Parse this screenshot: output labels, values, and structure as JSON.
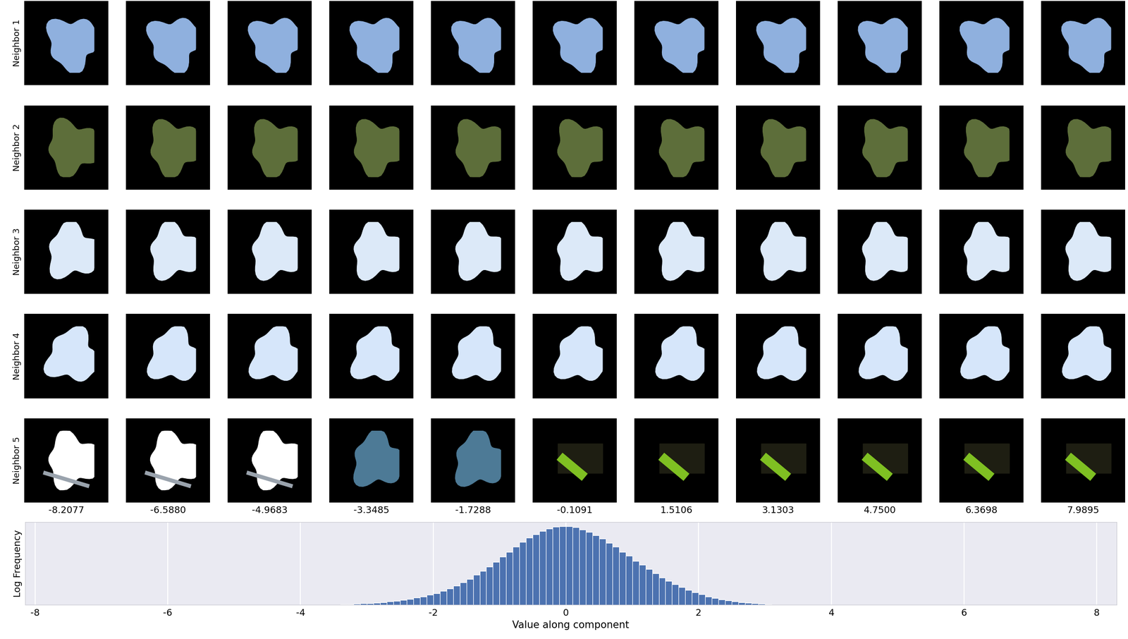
{
  "image_grid": {
    "row_labels": [
      "Neighbor 1",
      "Neighbor 2",
      "Neighbor 3",
      "Neighbor 4",
      "Neighbor 5"
    ],
    "column_labels": [
      "-8.2077",
      "-6.5880",
      "-4.9683",
      "-3.3485",
      "-1.7288",
      "-0.1091",
      "1.5106",
      "3.1303",
      "4.7500",
      "6.3698",
      "7.9895"
    ]
  },
  "chart_data": {
    "type": "histogram",
    "xlabel": "Value along component",
    "ylabel": "Log Frequency",
    "bins": [
      -3.4,
      -3.3,
      -3.2,
      -3.1,
      -3.0,
      -2.9,
      -2.8,
      -2.7,
      -2.6,
      -2.5,
      -2.4,
      -2.3,
      -2.2,
      -2.1,
      -2.0,
      -1.9,
      -1.8,
      -1.7,
      -1.6,
      -1.5,
      -1.4,
      -1.3,
      -1.2,
      -1.1,
      -1.0,
      -0.9,
      -0.8,
      -0.7,
      -0.6,
      -0.5,
      -0.4,
      -0.3,
      -0.2,
      -0.1,
      0.0,
      0.1,
      0.2,
      0.3,
      0.4,
      0.5,
      0.6,
      0.7,
      0.8,
      0.9,
      1.0,
      1.1,
      1.2,
      1.3,
      1.4,
      1.5,
      1.6,
      1.7,
      1.8,
      1.9,
      2.0,
      2.1,
      2.2,
      2.3,
      2.4,
      2.5,
      2.6,
      2.7,
      2.8,
      2.9,
      3.0,
      3.1
    ],
    "values": [
      0.05,
      0.08,
      0.1,
      0.15,
      0.2,
      0.25,
      0.3,
      0.4,
      0.45,
      0.55,
      0.7,
      0.85,
      1.0,
      1.2,
      1.4,
      1.65,
      1.95,
      2.3,
      2.7,
      3.1,
      3.6,
      4.1,
      4.6,
      5.2,
      5.8,
      6.4,
      7.0,
      7.6,
      8.1,
      8.5,
      8.9,
      9.2,
      9.4,
      9.5,
      9.5,
      9.35,
      9.1,
      8.8,
      8.4,
      8.0,
      7.5,
      7.0,
      6.4,
      5.9,
      5.3,
      4.8,
      4.3,
      3.8,
      3.3,
      2.9,
      2.5,
      2.1,
      1.8,
      1.5,
      1.25,
      1.0,
      0.8,
      0.65,
      0.5,
      0.4,
      0.3,
      0.22,
      0.15,
      0.1,
      0.05
    ],
    "xlim": [
      -8.15,
      8.3
    ],
    "ylim": [
      0,
      10
    ],
    "xticks": [
      -8,
      -6,
      -4,
      -2,
      0,
      2,
      4,
      6,
      8
    ],
    "grid": true,
    "tick_labels": "x",
    "color": "#4c72b0"
  }
}
